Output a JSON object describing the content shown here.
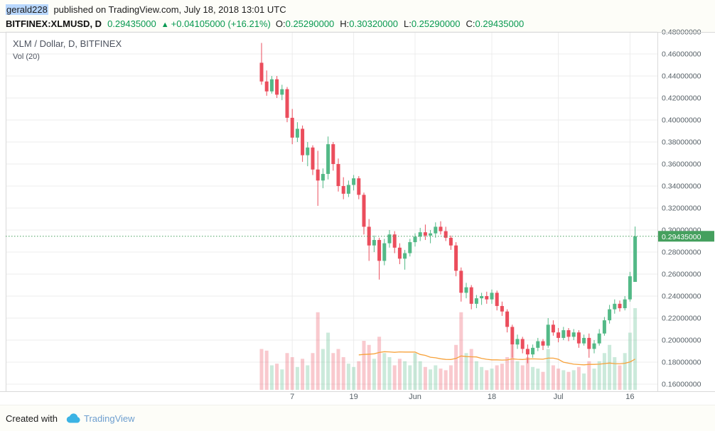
{
  "header": {
    "author": "gerald228",
    "published_text": "published on TradingView.com, July 18, 2018 13:01 UTC",
    "symbol": "BITFINEX:XLMUSD, D",
    "last_price": "0.29435000",
    "change_arrow": "▲",
    "change": "+0.04105000 (+16.21%)",
    "ohlc": [
      {
        "label": "O:",
        "value": "0.25290000"
      },
      {
        "label": "H:",
        "value": "0.30320000"
      },
      {
        "label": "L:",
        "value": "0.25290000"
      },
      {
        "label": "C:",
        "value": "0.29435000"
      }
    ]
  },
  "legend": {
    "title": "XLM / Dollar, D, BITFINEX",
    "indicator": "Vol (20)"
  },
  "footer": {
    "created_with": "Created with",
    "brand": "TradingView"
  },
  "colors": {
    "up": "#53b987",
    "down": "#eb4d5c",
    "vol_ma": "#f7a23b",
    "grid": "#ececec",
    "frame": "#d9d9d9",
    "axis_text": "#555f66",
    "header_green": "#089950",
    "price_tag_bg": "#45a05e",
    "dotted_line": "#45a05e",
    "brand_blue": "#3bb3e4"
  },
  "chart_data": {
    "type": "candlestick",
    "title": "XLM / Dollar, D, BITFINEX",
    "exchange": "BITFINEX",
    "symbol": "XLM/USD",
    "interval": "D",
    "indicator": "Vol (20)",
    "volume_ma_period": 20,
    "axis_side": "right",
    "ylim": [
      0.16,
      0.48
    ],
    "y_tick_step": 0.02,
    "y_tick_labels": [
      "0.48000000",
      "0.46000000",
      "0.44000000",
      "0.42000000",
      "0.40000000",
      "0.38000000",
      "0.36000000",
      "0.34000000",
      "0.32000000",
      "0.30000000",
      "0.28000000",
      "0.26000000",
      "0.24000000",
      "0.22000000",
      "0.20000000",
      "0.18000000",
      "0.16000000"
    ],
    "x_labels": [
      {
        "label": "7",
        "index": 6
      },
      {
        "label": "19",
        "index": 18
      },
      {
        "label": "Jun",
        "index": 30
      },
      {
        "label": "18",
        "index": 45
      },
      {
        "label": "Jul",
        "index": 58
      },
      {
        "label": "16",
        "index": 72
      }
    ],
    "last_price": 0.29435,
    "last_price_label": "0.29435000",
    "candle_format": [
      "open",
      "high",
      "low",
      "close",
      "volume_rel_0_100"
    ],
    "candles": [
      [
        0.452,
        0.47,
        0.432,
        0.435,
        50
      ],
      [
        0.435,
        0.445,
        0.422,
        0.426,
        48
      ],
      [
        0.426,
        0.44,
        0.424,
        0.437,
        30
      ],
      [
        0.437,
        0.44,
        0.42,
        0.423,
        32
      ],
      [
        0.423,
        0.432,
        0.418,
        0.428,
        25
      ],
      [
        0.428,
        0.43,
        0.398,
        0.402,
        45
      ],
      [
        0.402,
        0.41,
        0.378,
        0.384,
        40
      ],
      [
        0.384,
        0.398,
        0.38,
        0.392,
        28
      ],
      [
        0.392,
        0.395,
        0.362,
        0.368,
        38
      ],
      [
        0.368,
        0.38,
        0.358,
        0.375,
        30
      ],
      [
        0.375,
        0.377,
        0.35,
        0.355,
        45
      ],
      [
        0.355,
        0.372,
        0.322,
        0.345,
        95
      ],
      [
        0.345,
        0.356,
        0.338,
        0.351,
        50
      ],
      [
        0.351,
        0.385,
        0.346,
        0.378,
        70
      ],
      [
        0.378,
        0.38,
        0.354,
        0.36,
        45
      ],
      [
        0.36,
        0.365,
        0.335,
        0.34,
        50
      ],
      [
        0.34,
        0.348,
        0.328,
        0.333,
        40
      ],
      [
        0.333,
        0.345,
        0.33,
        0.341,
        32
      ],
      [
        0.341,
        0.35,
        0.336,
        0.347,
        28
      ],
      [
        0.347,
        0.349,
        0.328,
        0.332,
        35
      ],
      [
        0.332,
        0.334,
        0.296,
        0.303,
        60
      ],
      [
        0.303,
        0.31,
        0.272,
        0.286,
        55
      ],
      [
        0.286,
        0.295,
        0.28,
        0.291,
        38
      ],
      [
        0.291,
        0.293,
        0.255,
        0.272,
        65
      ],
      [
        0.272,
        0.292,
        0.268,
        0.288,
        45
      ],
      [
        0.288,
        0.3,
        0.284,
        0.296,
        40
      ],
      [
        0.296,
        0.299,
        0.279,
        0.284,
        30
      ],
      [
        0.284,
        0.288,
        0.269,
        0.274,
        38
      ],
      [
        0.274,
        0.282,
        0.264,
        0.279,
        35
      ],
      [
        0.279,
        0.292,
        0.276,
        0.289,
        30
      ],
      [
        0.289,
        0.297,
        0.285,
        0.294,
        45
      ],
      [
        0.294,
        0.302,
        0.29,
        0.298,
        35
      ],
      [
        0.298,
        0.305,
        0.291,
        0.295,
        28
      ],
      [
        0.295,
        0.3,
        0.288,
        0.297,
        25
      ],
      [
        0.297,
        0.307,
        0.293,
        0.303,
        30
      ],
      [
        0.303,
        0.308,
        0.296,
        0.299,
        26
      ],
      [
        0.299,
        0.303,
        0.29,
        0.293,
        24
      ],
      [
        0.293,
        0.295,
        0.282,
        0.286,
        30
      ],
      [
        0.286,
        0.289,
        0.258,
        0.263,
        55
      ],
      [
        0.263,
        0.266,
        0.235,
        0.243,
        95
      ],
      [
        0.243,
        0.252,
        0.238,
        0.248,
        45
      ],
      [
        0.248,
        0.25,
        0.228,
        0.233,
        50
      ],
      [
        0.233,
        0.241,
        0.229,
        0.238,
        35
      ],
      [
        0.238,
        0.243,
        0.232,
        0.24,
        28
      ],
      [
        0.24,
        0.244,
        0.233,
        0.237,
        24
      ],
      [
        0.237,
        0.246,
        0.233,
        0.243,
        26
      ],
      [
        0.243,
        0.245,
        0.227,
        0.231,
        30
      ],
      [
        0.231,
        0.235,
        0.222,
        0.226,
        32
      ],
      [
        0.226,
        0.228,
        0.207,
        0.212,
        40
      ],
      [
        0.212,
        0.214,
        0.184,
        0.196,
        55
      ],
      [
        0.196,
        0.205,
        0.192,
        0.201,
        35
      ],
      [
        0.201,
        0.203,
        0.188,
        0.192,
        30
      ],
      [
        0.192,
        0.196,
        0.179,
        0.187,
        40
      ],
      [
        0.187,
        0.196,
        0.184,
        0.193,
        28
      ],
      [
        0.193,
        0.202,
        0.19,
        0.199,
        26
      ],
      [
        0.199,
        0.201,
        0.191,
        0.195,
        22
      ],
      [
        0.195,
        0.22,
        0.193,
        0.214,
        50
      ],
      [
        0.214,
        0.218,
        0.204,
        0.207,
        30
      ],
      [
        0.207,
        0.211,
        0.198,
        0.202,
        26
      ],
      [
        0.202,
        0.212,
        0.2,
        0.209,
        24
      ],
      [
        0.209,
        0.211,
        0.199,
        0.203,
        22
      ],
      [
        0.203,
        0.21,
        0.2,
        0.207,
        24
      ],
      [
        0.207,
        0.209,
        0.193,
        0.197,
        28
      ],
      [
        0.197,
        0.205,
        0.195,
        0.202,
        20
      ],
      [
        0.202,
        0.206,
        0.184,
        0.192,
        35
      ],
      [
        0.192,
        0.2,
        0.188,
        0.197,
        26
      ],
      [
        0.197,
        0.21,
        0.195,
        0.206,
        35
      ],
      [
        0.206,
        0.221,
        0.204,
        0.218,
        45
      ],
      [
        0.218,
        0.232,
        0.215,
        0.228,
        55
      ],
      [
        0.228,
        0.237,
        0.224,
        0.233,
        40
      ],
      [
        0.233,
        0.236,
        0.226,
        0.229,
        30
      ],
      [
        0.229,
        0.24,
        0.227,
        0.237,
        45
      ],
      [
        0.237,
        0.262,
        0.235,
        0.258,
        70
      ],
      [
        0.2529,
        0.3032,
        0.2529,
        0.29435,
        100
      ]
    ]
  }
}
